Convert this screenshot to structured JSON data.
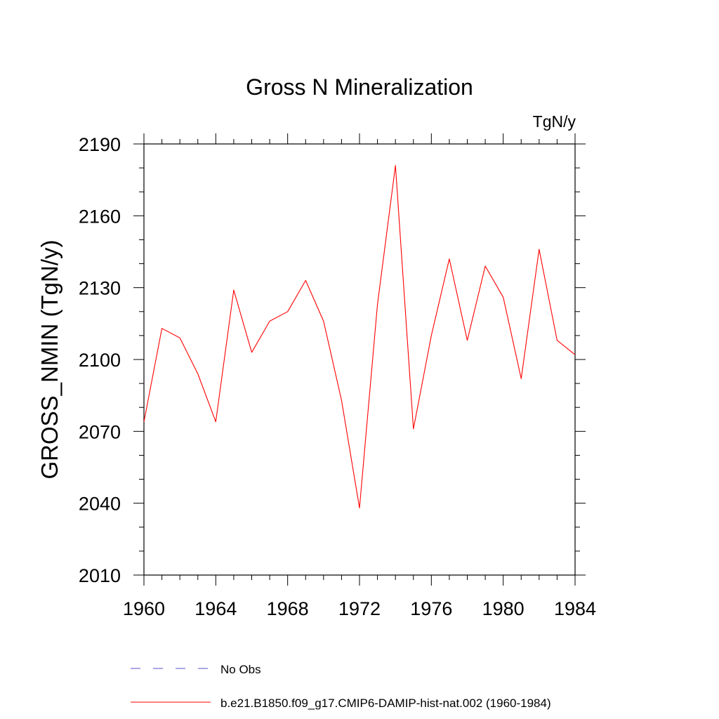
{
  "chart_data": {
    "type": "line",
    "title": "Gross N Mineralization",
    "units_label": "TgN/y",
    "ylabel": "GROSS_NMIN  (TgN/y)",
    "xlabel": "",
    "xlim": [
      1960,
      1984
    ],
    "ylim": [
      2010,
      2190
    ],
    "xticks": [
      1960,
      1964,
      1968,
      1972,
      1976,
      1980,
      1984
    ],
    "yticks": [
      2010,
      2040,
      2070,
      2100,
      2130,
      2160,
      2190
    ],
    "x_minor_step": 1,
    "y_minor_step": 10,
    "grid": false,
    "legend_placement": "bottom",
    "series": [
      {
        "name": "No Obs",
        "color": "#5a4fcf",
        "dash": "dashed",
        "x": [],
        "values": []
      },
      {
        "name": "b.e21.B1850.f09_g17.CMIP6-DAMIP-hist-nat.002 (1960-1984)",
        "color": "#ff0000",
        "dash": "solid",
        "x": [
          1960,
          1961,
          1962,
          1963,
          1964,
          1965,
          1966,
          1967,
          1968,
          1969,
          1970,
          1971,
          1972,
          1973,
          1974,
          1975,
          1976,
          1977,
          1978,
          1979,
          1980,
          1981,
          1982,
          1983,
          1984
        ],
        "values": [
          2074,
          2113,
          2109,
          2094,
          2074,
          2129,
          2103,
          2116,
          2120,
          2133,
          2116,
          2083,
          2038,
          2123,
          2181,
          2071,
          2110,
          2142,
          2108,
          2139,
          2126,
          2092,
          2146,
          2108,
          2102
        ]
      }
    ]
  }
}
